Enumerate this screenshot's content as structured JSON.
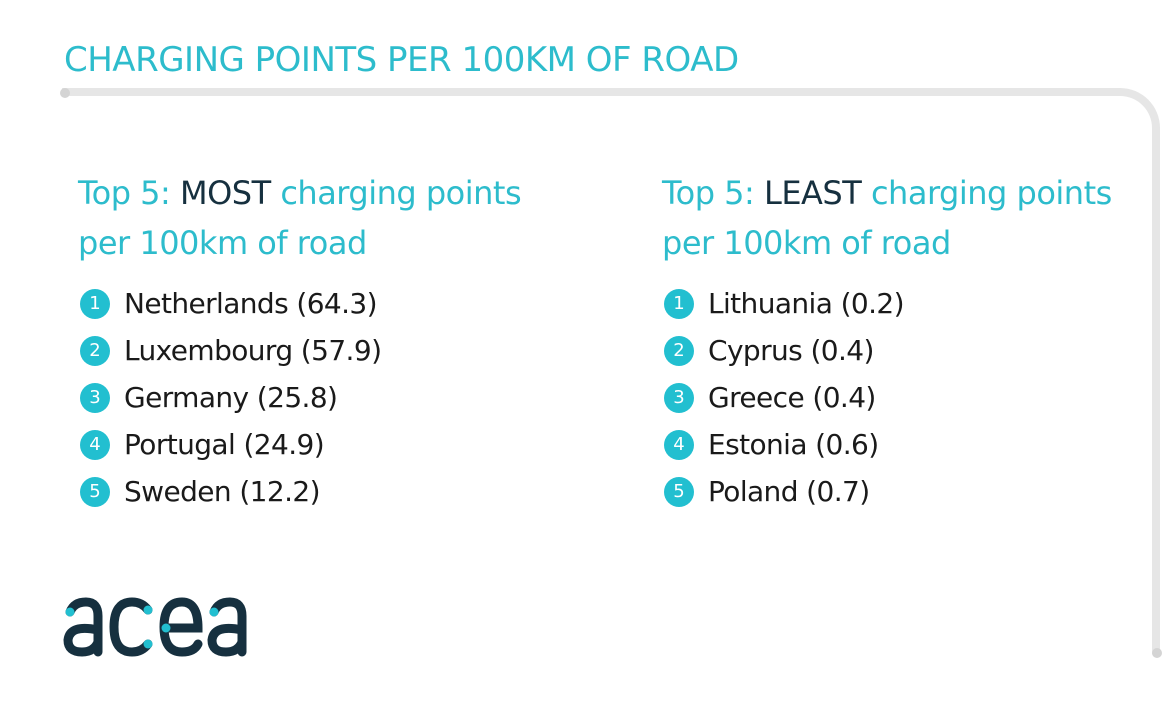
{
  "header": {
    "title": "CHARGING POINTS PER 100KM OF ROAD"
  },
  "most": {
    "heading_prefix": "Top 5: ",
    "heading_emphasis": "MOST",
    "heading_suffix_line1": " charging points",
    "heading_line2": "per 100km of road",
    "items": [
      {
        "rank": "1",
        "text": "Netherlands (64.3)"
      },
      {
        "rank": "2",
        "text": "Luxembourg (57.9)"
      },
      {
        "rank": "3",
        "text": "Germany (25.8)"
      },
      {
        "rank": "4",
        "text": "Portugal (24.9)"
      },
      {
        "rank": "5",
        "text": "Sweden (12.2)"
      }
    ]
  },
  "least": {
    "heading_prefix": "Top 5: ",
    "heading_emphasis": "LEAST",
    "heading_suffix_line1": " charging points",
    "heading_line2": "per 100km of road",
    "items": [
      {
        "rank": "1",
        "text": "Lithuania (0.2)"
      },
      {
        "rank": "2",
        "text": "Cyprus (0.4)"
      },
      {
        "rank": "3",
        "text": "Greece (0.4)"
      },
      {
        "rank": "4",
        "text": "Estonia (0.6)"
      },
      {
        "rank": "5",
        "text": "Poland (0.7)"
      }
    ]
  },
  "logo": {
    "text": "acea",
    "colors": {
      "dark": "#16303f",
      "accent": "#22bfd0"
    }
  },
  "colors": {
    "accent": "#2dbccc",
    "badge": "#22bfd0",
    "emphasis": "#16303f",
    "frame": "#e6e6e6"
  }
}
